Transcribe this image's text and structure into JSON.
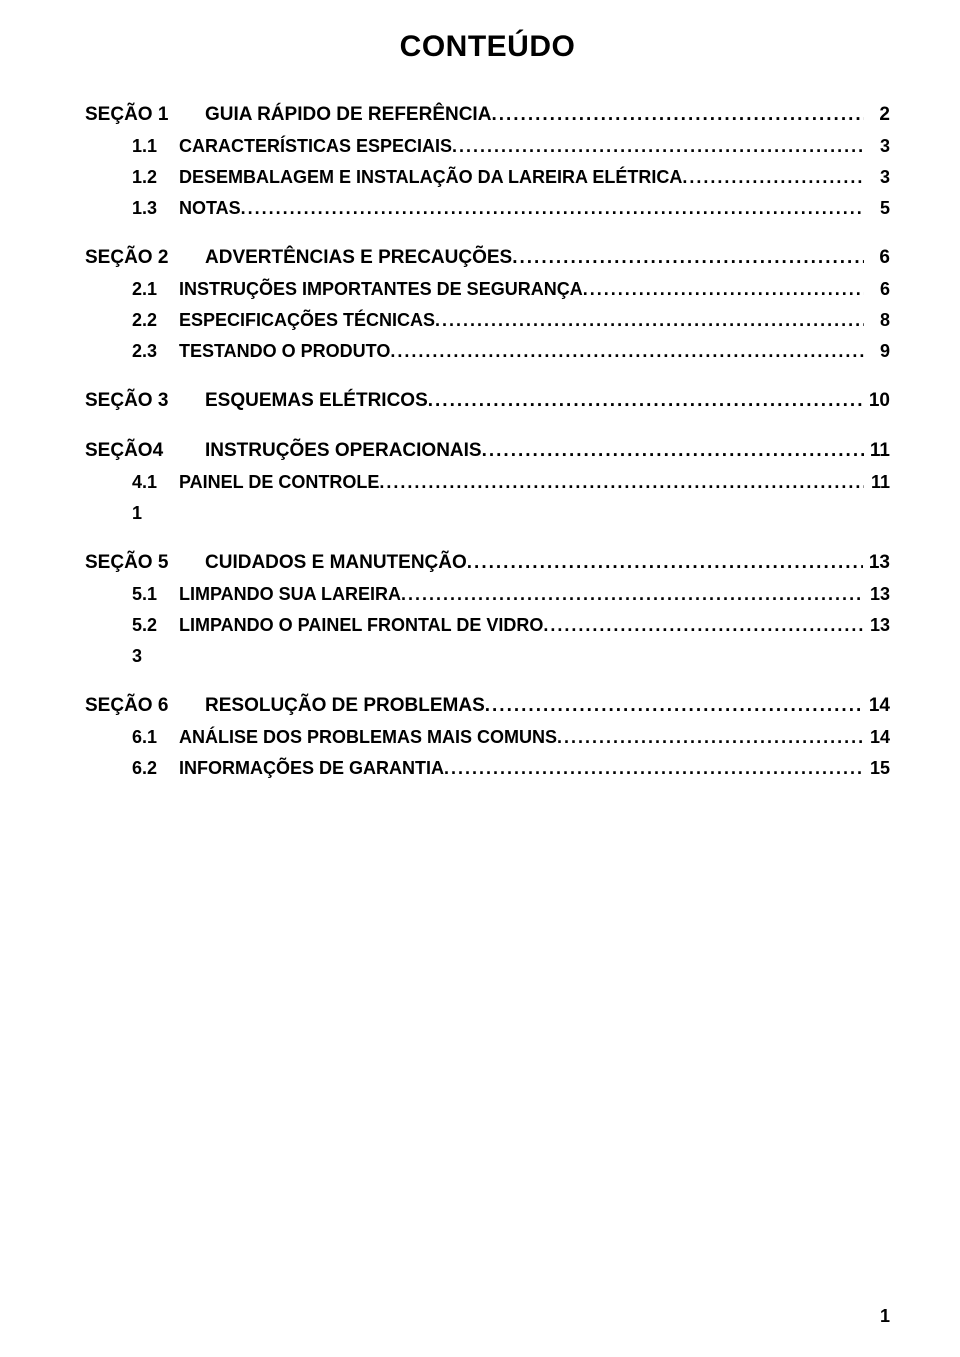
{
  "title": "CONTEÚDO",
  "footer_page": "1",
  "colors": {
    "text": "#000000",
    "background": "#ffffff"
  },
  "typography": {
    "title_pt": 30,
    "section_pt": 19,
    "sub_pt": 18,
    "family": "Arial"
  },
  "entries": [
    {
      "type": "section",
      "num": "SEÇÃO 1",
      "label": "GUIA RÁPIDO DE REFERÊNCIA",
      "page": "2"
    },
    {
      "type": "sub",
      "num": "1.1",
      "label": "CARACTERÍSTICAS ESPECIAIS",
      "page": "3"
    },
    {
      "type": "sub",
      "num": "1.2",
      "label": "DESEMBALAGEM E INSTALAÇÃO DA LAREIRA ELÉTRICA",
      "page": "3"
    },
    {
      "type": "sub",
      "num": "1.3",
      "label": "NOTAS",
      "page": "5"
    },
    {
      "type": "section",
      "num": "SEÇÃO 2",
      "label": "ADVERTÊNCIAS E PRECAUÇÕES",
      "page": "6"
    },
    {
      "type": "sub",
      "num": "2.1",
      "label": "INSTRUÇÕES IMPORTANTES DE SEGURANÇA",
      "page": "6"
    },
    {
      "type": "sub",
      "num": "2.2",
      "label": "ESPECIFICAÇÕES TÉCNICAS",
      "page": "8"
    },
    {
      "type": "sub",
      "num": "2.3",
      "label": "TESTANDO O PRODUTO",
      "page": "9"
    },
    {
      "type": "section",
      "num": "SEÇÃO 3",
      "label": "ESQUEMAS ELÉTRICOS",
      "page": "10"
    },
    {
      "type": "section",
      "num": "SEÇÃO4",
      "label": "INSTRUÇÕES OPERACIONAIS",
      "page": "11"
    },
    {
      "type": "sub",
      "num": "4.1",
      "label": "PAINEL DE CONTROLE",
      "page": "11"
    },
    {
      "type": "stray",
      "text": "1"
    },
    {
      "type": "section",
      "num": "SEÇÃO 5",
      "label": "CUIDADOS E MANUTENÇÃO",
      "page": "13"
    },
    {
      "type": "sub",
      "num": "5.1",
      "label": "LIMPANDO SUA LAREIRA",
      "page": "13"
    },
    {
      "type": "sub",
      "num": "5.2",
      "label": "LIMPANDO O PAINEL FRONTAL DE VIDRO",
      "page": "13"
    },
    {
      "type": "stray",
      "text": "3"
    },
    {
      "type": "section",
      "num": "SEÇÃO 6",
      "label": "RESOLUÇÃO DE PROBLEMAS",
      "page": "14"
    },
    {
      "type": "sub",
      "num": "6.1",
      "label": "ANÁLISE DOS PROBLEMAS MAIS COMUNS",
      "page": "14"
    },
    {
      "type": "sub",
      "num": "6.2",
      "label": "INFORMAÇÕES DE GARANTIA",
      "page": "15"
    }
  ]
}
